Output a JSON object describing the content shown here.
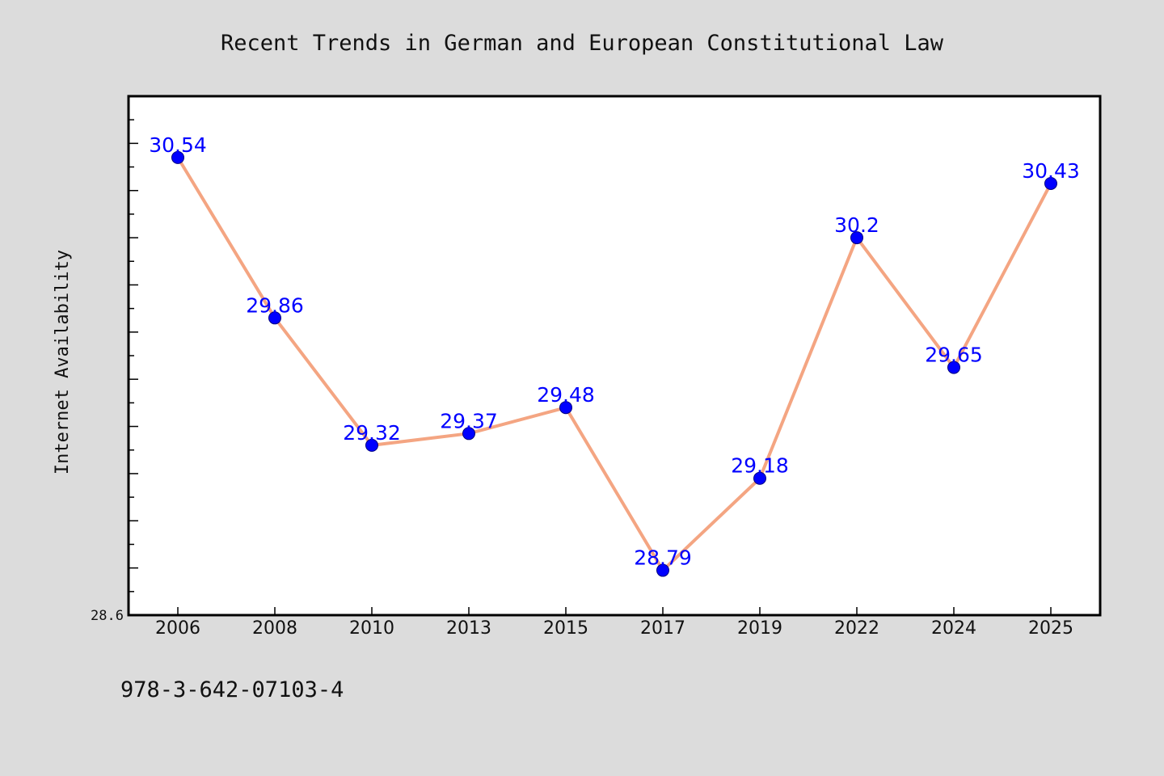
{
  "chart_data": {
    "type": "line",
    "title": "Recent Trends in German and European Constitutional Law",
    "xlabel": "",
    "ylabel": "Internet Availability",
    "categories": [
      "2006",
      "2008",
      "2010",
      "2013",
      "2015",
      "2017",
      "2019",
      "2022",
      "2024",
      "2025"
    ],
    "values": [
      30.54,
      29.86,
      29.32,
      29.37,
      29.48,
      28.79,
      29.18,
      30.2,
      29.65,
      30.43
    ],
    "data_labels": [
      "30.54",
      "29.86",
      "29.32",
      "29.37",
      "29.48",
      "28.79",
      "29.18",
      "30.2",
      "29.65",
      "30.43"
    ],
    "ylim": [
      28.6,
      30.8
    ],
    "ytick_labels": [
      "28.6"
    ],
    "grid": false,
    "line_color": "#f4a582",
    "marker_color": "#0000ff",
    "label_color": "#0000ff"
  },
  "footer": {
    "isbn": "978-3-642-07103-4"
  }
}
